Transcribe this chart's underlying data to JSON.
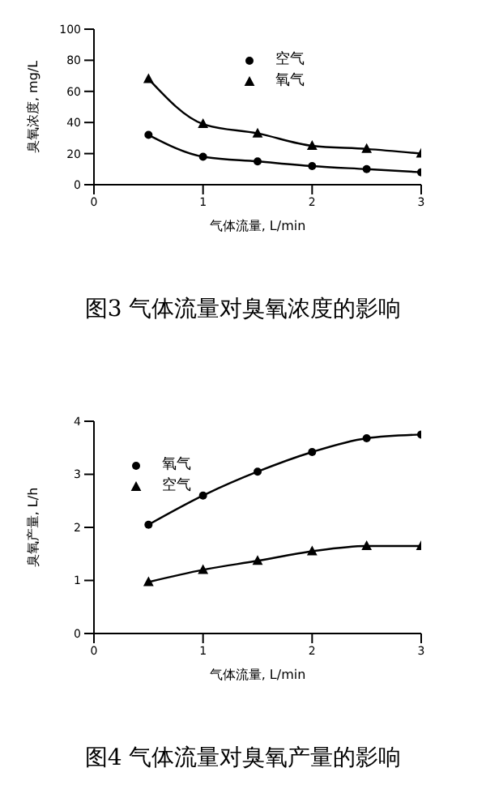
{
  "chart_data": [
    {
      "type": "line",
      "title": "图3 气体流量对臭氧浓度的影响",
      "xlabel": "气体流量, L/min",
      "ylabel": "臭氧浓度, mg/L",
      "x": [
        0.5,
        1,
        1.5,
        2,
        2.5,
        3
      ],
      "xlim": [
        0,
        3
      ],
      "xticks": [
        0,
        1,
        2,
        3
      ],
      "ylim": [
        0,
        100
      ],
      "yticks": [
        0,
        20,
        40,
        60,
        80,
        100
      ],
      "grid": false,
      "legend": "top right",
      "series": [
        {
          "name": "空气",
          "color": "#000000",
          "marker": "circle",
          "values": [
            32,
            18,
            15,
            12,
            10,
            8
          ]
        },
        {
          "name": "氧气",
          "color": "#000000",
          "marker": "triangle",
          "values": [
            68,
            39,
            33,
            25,
            23,
            20
          ]
        }
      ]
    },
    {
      "type": "line",
      "title": "图4 气体流量对臭氧产量的影响",
      "xlabel": "气体流量, L/min",
      "ylabel": "臭氧产量, L/h",
      "x": [
        0.5,
        1,
        1.5,
        2,
        2.5,
        3
      ],
      "xlim": [
        0,
        3
      ],
      "xticks": [
        0,
        1,
        2,
        3
      ],
      "ylim": [
        0,
        4
      ],
      "yticks": [
        0,
        1,
        2,
        3,
        4
      ],
      "grid": false,
      "legend": "top left",
      "series": [
        {
          "name": "氧气",
          "color": "#000000",
          "marker": "circle",
          "values": [
            2.05,
            2.6,
            3.05,
            3.42,
            3.68,
            3.75
          ]
        },
        {
          "name": "空气",
          "color": "#000000",
          "marker": "triangle",
          "values": [
            0.97,
            1.2,
            1.37,
            1.55,
            1.65,
            1.65
          ]
        }
      ]
    }
  ]
}
